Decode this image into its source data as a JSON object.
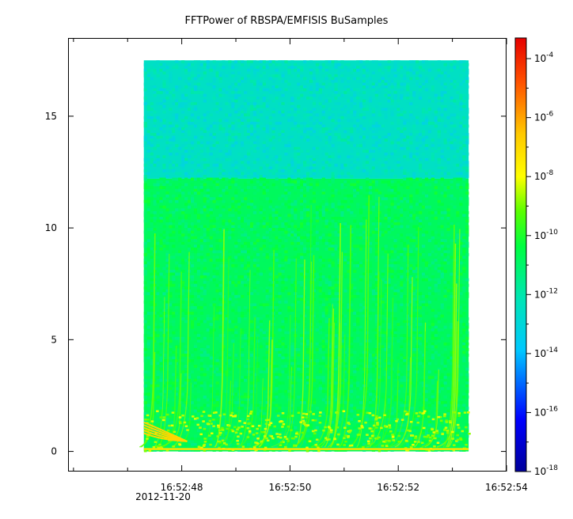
{
  "chart_data": {
    "type": "heatmap",
    "title": "FFTPower of RBSPA/EMFISIS  BuSamples",
    "x": {
      "ticks": [
        "16:52:48",
        "16:52:50",
        "16:52:52",
        "16:52:54"
      ],
      "tick_seconds": [
        48,
        50,
        52,
        54
      ],
      "range_seconds": [
        45.9,
        54.0
      ],
      "date_label": "2012-11-20",
      "data_range_seconds": [
        47.3,
        53.3
      ]
    },
    "y": {
      "ticks": [
        0,
        5,
        10,
        15
      ],
      "range": [
        -0.9,
        18.5
      ],
      "data_range": [
        0,
        17.5
      ],
      "band_change_at": 12.2
    },
    "colorbar": {
      "scale": "log",
      "min_exponent": -18,
      "max_exponent": -3.3,
      "tick_exponents": [
        -4,
        -6,
        -8,
        -10,
        -12,
        -14,
        -16,
        -18
      ],
      "palette": "rainbow"
    },
    "levels": {
      "upper_band_exponent": -12.5,
      "lower_band_exponent": -10.8,
      "baseline_exponent": -7.8,
      "stripe_peak_exponent": -8.6
    }
  }
}
